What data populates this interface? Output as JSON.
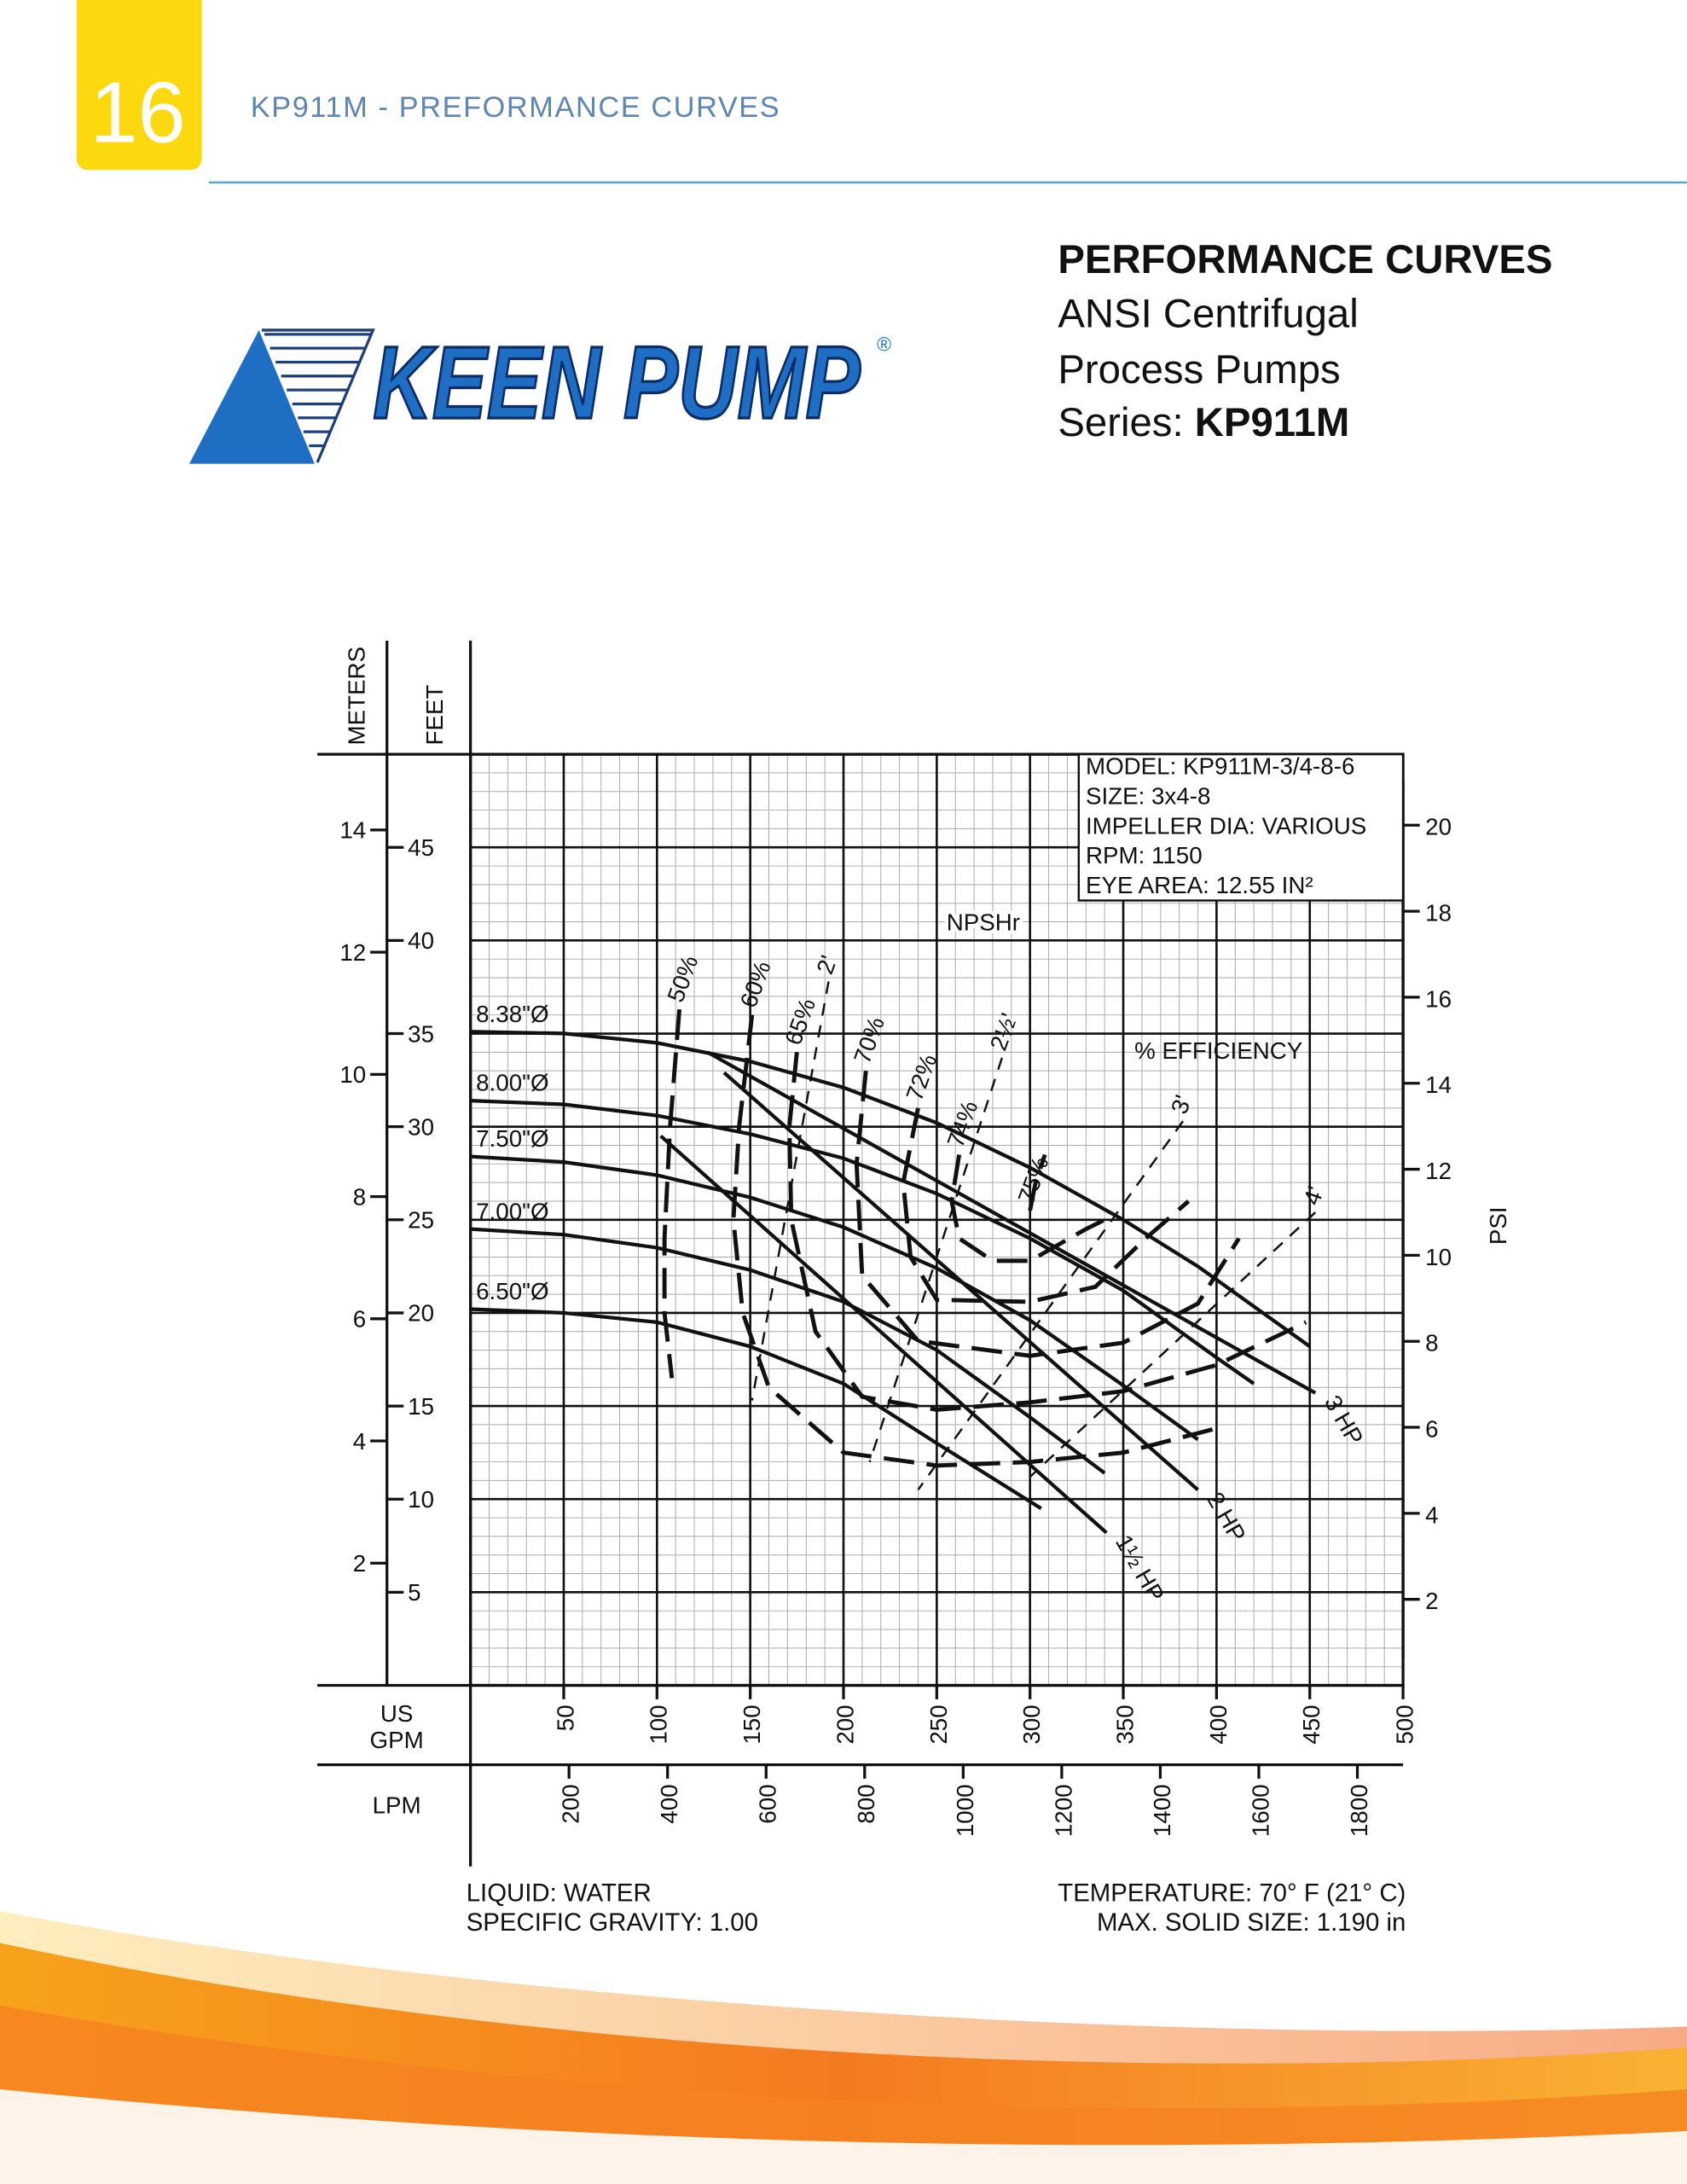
{
  "header": {
    "page_number": "16",
    "title": "KP911M - PREFORMANCE CURVES"
  },
  "logo": {
    "text": "KEEN PUMP",
    "mark": "®"
  },
  "heading": {
    "title": "PERFORMANCE CURVES",
    "line1": "ANSI Centrifugal",
    "line2": "Process Pumps",
    "series_label": "Series:",
    "series_value": "KP911M"
  },
  "chart_data": {
    "type": "line",
    "y_label": "FEET",
    "y3_label": "METERS",
    "y2_label": "PSI",
    "x_label": [
      "US",
      "GPM"
    ],
    "x2_label": "LPM",
    "info": [
      "MODEL: KP911M-3/4-8-6",
      "SIZE: 3x4-8",
      "IMPELLER DIA: VARIOUS",
      "RPM: 1150",
      "EYE AREA: 12.55 IN²"
    ],
    "annotations": [
      "NPSHr",
      "% EFFICIENCY"
    ],
    "xlim": [
      0,
      500
    ],
    "xticks": [
      50,
      100,
      150,
      200,
      250,
      300,
      350,
      400,
      450,
      500
    ],
    "ylim": [
      0,
      50
    ],
    "yticks": [
      5,
      10,
      15,
      20,
      25,
      30,
      35,
      40,
      45
    ],
    "y2lim": [
      0,
      21.65
    ],
    "y2ticks": [
      2,
      4,
      6,
      8,
      10,
      12,
      14,
      16,
      18,
      20
    ],
    "y3lim": [
      0,
      15.24
    ],
    "y3ticks": [
      2,
      4,
      6,
      8,
      10,
      12,
      14
    ],
    "x2lim": [
      0,
      1892.7
    ],
    "x2ticks": [
      200,
      400,
      600,
      800,
      1000,
      1200,
      1400,
      1600,
      1800
    ],
    "grid": true,
    "series": [
      {
        "name": "8.38\"Ø",
        "color": "#111",
        "dash": "solid",
        "x": [
          0,
          50,
          100,
          150,
          200,
          250,
          300,
          350,
          390,
          450
        ],
        "values": [
          35.1,
          35.0,
          34.5,
          33.5,
          32.1,
          30.2,
          27.8,
          25.0,
          22.5,
          18.2
        ]
      },
      {
        "name": "8.00\"Ø",
        "color": "#111",
        "dash": "solid",
        "x": [
          0,
          50,
          100,
          150,
          200,
          250,
          300,
          350,
          400,
          420
        ],
        "values": [
          31.4,
          31.2,
          30.6,
          29.6,
          28.3,
          26.4,
          24.0,
          21.2,
          17.6,
          16.2
        ]
      },
      {
        "name": "7.50\"Ø",
        "color": "#111",
        "dash": "solid",
        "x": [
          0,
          50,
          100,
          150,
          200,
          250,
          300,
          350,
          390
        ],
        "values": [
          28.4,
          28.1,
          27.4,
          26.2,
          24.6,
          22.4,
          19.6,
          16.1,
          13.2
        ]
      },
      {
        "name": "7.00\"Ø",
        "color": "#111",
        "dash": "solid",
        "x": [
          0,
          50,
          100,
          150,
          200,
          250,
          300,
          340
        ],
        "values": [
          24.5,
          24.2,
          23.5,
          22.3,
          20.6,
          18.0,
          14.4,
          11.4
        ]
      },
      {
        "name": "6.50\"Ø",
        "color": "#111",
        "dash": "solid",
        "x": [
          0,
          50,
          100,
          150,
          200,
          250,
          306
        ],
        "values": [
          20.2,
          20.0,
          19.5,
          18.2,
          16.2,
          13.0,
          9.5
        ]
      },
      {
        "name": "50%",
        "color": "#111",
        "dash": "long",
        "x": [
          112,
          107,
          104,
          104,
          108
        ],
        "values": [
          36.3,
          30,
          24,
          20,
          16.5
        ]
      },
      {
        "name": "60%",
        "color": "#111",
        "dash": "long",
        "x": [
          151,
          144,
          141,
          146,
          160,
          200,
          250,
          300,
          350,
          400
        ],
        "values": [
          36,
          30,
          25,
          20,
          16,
          12.5,
          11.8,
          12,
          12.5,
          13.8
        ]
      },
      {
        "name": "65%",
        "color": "#111",
        "dash": "long",
        "x": [
          175,
          171,
          172,
          185,
          210,
          250,
          300,
          350,
          400,
          448
        ],
        "values": [
          34,
          30,
          25,
          19,
          15.5,
          14.8,
          15.2,
          15.8,
          17.2,
          19.5
        ]
      },
      {
        "name": "70%",
        "color": "#111",
        "dash": "long",
        "x": [
          212,
          207,
          210,
          240,
          300,
          350,
          390,
          412
        ],
        "values": [
          33,
          28,
          22,
          18.5,
          17.7,
          18.4,
          20.5,
          24
        ]
      },
      {
        "name": "72%",
        "color": "#111",
        "dash": "long",
        "x": [
          240,
          232,
          236,
          250,
          300,
          335,
          362,
          385
        ],
        "values": [
          31,
          27,
          23,
          20.7,
          20.6,
          21.4,
          24,
          26
        ]
      },
      {
        "name": "74%",
        "color": "#111",
        "dash": "long",
        "x": [
          262,
          258,
          262,
          280,
          300,
          330,
          340
        ],
        "values": [
          28.5,
          26,
          24,
          22.8,
          22.8,
          24.5,
          25
        ]
      },
      {
        "name": "75%",
        "color": "#111",
        "dash": "long",
        "x": [
          300,
          303,
          308
        ],
        "values": [
          25.5,
          27,
          28.5
        ]
      },
      {
        "name": "2'",
        "color": "#111",
        "dash": "short",
        "x": [
          192,
          151
        ],
        "values": [
          37.8,
          15.3
        ]
      },
      {
        "name": "2½'",
        "color": "#111",
        "dash": "short",
        "x": [
          285,
          214
        ],
        "values": [
          33.7,
          12
        ]
      },
      {
        "name": "3'",
        "color": "#111",
        "dash": "short",
        "x": [
          382,
          240
        ],
        "values": [
          30.3,
          10.5
        ]
      },
      {
        "name": "4'",
        "color": "#111",
        "dash": "short",
        "x": [
          453,
          300
        ],
        "values": [
          25.4,
          11.2
        ]
      },
      {
        "name": "1½ HP",
        "color": "#111",
        "dash": "solid",
        "x": [
          102,
          341
        ],
        "values": [
          29.5,
          8.2
        ]
      },
      {
        "name": "2 HP",
        "color": "#111",
        "dash": "solid",
        "x": [
          136,
          390
        ],
        "values": [
          32.9,
          10.5
        ]
      },
      {
        "name": "3 HP",
        "color": "#111",
        "dash": "solid",
        "x": [
          127,
          453
        ],
        "values": [
          34,
          15.7
        ]
      }
    ]
  },
  "notes": {
    "left": [
      "LIQUID: WATER",
      "SPECIFIC GRAVITY: 1.00"
    ],
    "right": [
      "TEMPERATURE: 70° F (21° C)",
      "MAX. SOLID SIZE: 1.190 in"
    ]
  }
}
